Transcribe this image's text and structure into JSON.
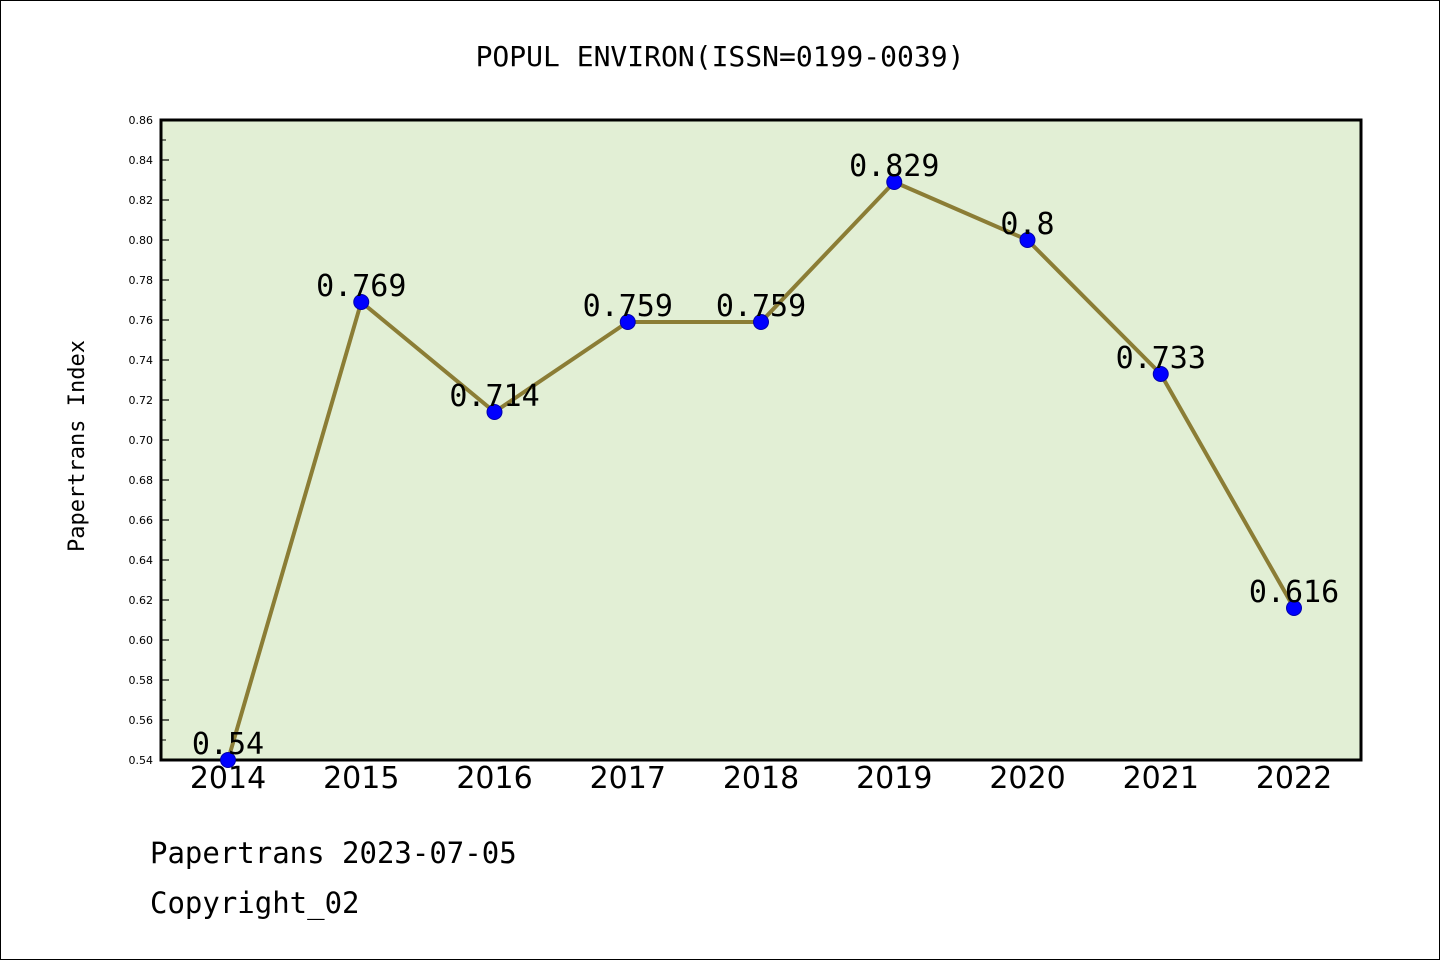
{
  "chart_data": {
    "type": "line",
    "title": "POPUL ENVIRON(ISSN=0199-0039)",
    "xlabel": "",
    "ylabel": "Papertrans Index",
    "categories": [
      "2014",
      "2015",
      "2016",
      "2017",
      "2018",
      "2019",
      "2020",
      "2021",
      "2022"
    ],
    "series": [
      {
        "values": [
          0.54,
          0.769,
          0.714,
          0.759,
          0.759,
          0.829,
          0.8,
          0.733,
          0.616
        ],
        "labels": [
          "0.54",
          "0.769",
          "0.714",
          "0.759",
          "0.759",
          "0.829",
          "0.8",
          "0.733",
          "0.616"
        ]
      }
    ],
    "ylim": [
      0.54,
      0.86
    ],
    "yticks": [
      "0.54",
      "0.56",
      "0.58",
      "0.60",
      "0.62",
      "0.64",
      "0.66",
      "0.68",
      "0.70",
      "0.72",
      "0.74",
      "0.76",
      "0.78",
      "0.80",
      "0.82",
      "0.84",
      "0.86"
    ],
    "grid": false,
    "legend": "none",
    "colors": {
      "plot_background": "#e2efd5",
      "line": "#8b7d35",
      "marker": "#0000ff",
      "marker_edge": "#0000aa"
    }
  },
  "footer": {
    "line1": "Papertrans 2023-07-05",
    "line2": "Copyright_02"
  }
}
